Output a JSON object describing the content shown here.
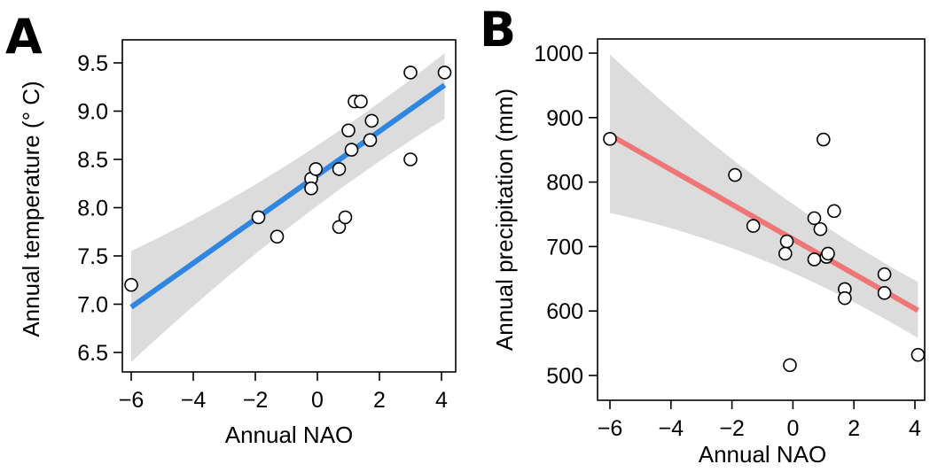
{
  "chart_data": [
    {
      "type": "scatter",
      "panel_label": "A",
      "xlabel": "Annual NAO",
      "ylabel": "Annual temperature (° C)",
      "xticks": [
        -6,
        -4,
        -2,
        0,
        2,
        4
      ],
      "yticks": [
        6.5,
        7.0,
        7.5,
        8.0,
        8.5,
        9.0,
        9.5
      ],
      "xtick_labels": [
        "−6",
        "−4",
        "−2",
        "0",
        "2",
        "4"
      ],
      "ytick_labels": [
        "6.5",
        "7.0",
        "7.5",
        "8.0",
        "8.5",
        "9.0",
        "9.5"
      ],
      "xlim": [
        -6.3,
        4.5
      ],
      "ylim": [
        6.4,
        9.65
      ],
      "points": [
        {
          "x": -6.0,
          "y": 7.2
        },
        {
          "x": -1.9,
          "y": 7.9
        },
        {
          "x": -1.3,
          "y": 7.7
        },
        {
          "x": -0.2,
          "y": 8.3
        },
        {
          "x": -0.2,
          "y": 8.2
        },
        {
          "x": -0.05,
          "y": 8.4
        },
        {
          "x": 0.7,
          "y": 8.4
        },
        {
          "x": 0.7,
          "y": 7.8
        },
        {
          "x": 0.9,
          "y": 7.9
        },
        {
          "x": 1.0,
          "y": 8.8
        },
        {
          "x": 1.1,
          "y": 8.6
        },
        {
          "x": 1.2,
          "y": 9.1
        },
        {
          "x": 1.4,
          "y": 9.1
        },
        {
          "x": 1.7,
          "y": 8.7
        },
        {
          "x": 1.75,
          "y": 8.9
        },
        {
          "x": 3.0,
          "y": 9.4
        },
        {
          "x": 3.0,
          "y": 8.5
        },
        {
          "x": 4.1,
          "y": 9.4
        }
      ],
      "fit_line": {
        "x": [
          -6.0,
          4.1
        ],
        "y": [
          6.97,
          9.27
        ],
        "color": "#2f86e0"
      },
      "ci_band": {
        "x": [
          -6.0,
          4.1
        ],
        "upper": [
          7.55,
          9.6
        ],
        "lower": [
          6.4,
          8.92
        ],
        "color": "#dcdcdc"
      }
    },
    {
      "type": "scatter",
      "panel_label": "B",
      "xlabel": "Annual NAO",
      "ylabel": "Annual precipitation (mm)",
      "xticks": [
        -6,
        -4,
        -2,
        0,
        2,
        4
      ],
      "yticks": [
        500,
        600,
        700,
        800,
        900,
        1000
      ],
      "xtick_labels": [
        "−6",
        "−4",
        "−2",
        "0",
        "2",
        "4"
      ],
      "ytick_labels": [
        "500",
        "600",
        "700",
        "800",
        "900",
        "1000"
      ],
      "xlim": [
        -6.2,
        4.25
      ],
      "ylim": [
        495,
        1010
      ],
      "points": [
        {
          "x": -6.0,
          "y": 867
        },
        {
          "x": -1.9,
          "y": 811
        },
        {
          "x": -1.3,
          "y": 732
        },
        {
          "x": -0.2,
          "y": 708
        },
        {
          "x": -0.25,
          "y": 689
        },
        {
          "x": -0.1,
          "y": 516
        },
        {
          "x": 0.7,
          "y": 744
        },
        {
          "x": 0.7,
          "y": 680
        },
        {
          "x": 0.9,
          "y": 727
        },
        {
          "x": 1.0,
          "y": 866
        },
        {
          "x": 1.1,
          "y": 684
        },
        {
          "x": 1.15,
          "y": 689
        },
        {
          "x": 1.35,
          "y": 755
        },
        {
          "x": 1.7,
          "y": 634
        },
        {
          "x": 1.7,
          "y": 620
        },
        {
          "x": 3.0,
          "y": 657
        },
        {
          "x": 3.0,
          "y": 628
        },
        {
          "x": 4.1,
          "y": 532
        }
      ],
      "fit_line": {
        "x": [
          -6.0,
          4.1
        ],
        "y": [
          873,
          601
        ],
        "color": "#ef7676"
      },
      "ci_band": {
        "x": [
          -6.0,
          4.1
        ],
        "upper": [
          998,
          645
        ],
        "lower": [
          752,
          558
        ],
        "color": "#dcdcdc"
      }
    }
  ]
}
